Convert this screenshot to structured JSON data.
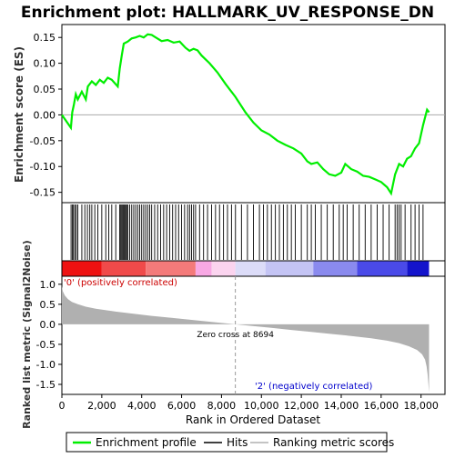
{
  "chart_data": {
    "type": "line",
    "title": "Enrichment plot: HALLMARK_UV_RESPONSE_DN",
    "top_panel": {
      "ylabel": "Enrichment score (ES)",
      "ylim": [
        -0.17,
        0.175
      ],
      "yticks": [
        0.15,
        0.1,
        0.05,
        0.0,
        -0.05,
        -0.1,
        -0.15
      ],
      "ytick_labels": [
        "0.15",
        "0.10",
        "0.05",
        "0.00",
        "-0.05",
        "-0.10",
        "-0.15"
      ],
      "series": [
        {
          "name": "Enrichment profile",
          "color": "#00ee00",
          "x": [
            0,
            450,
            520,
            600,
            700,
            800,
            1000,
            1200,
            1300,
            1500,
            1700,
            1900,
            2100,
            2300,
            2500,
            2800,
            2900,
            3000,
            3100,
            3200,
            3300,
            3500,
            3700,
            3900,
            4100,
            4300,
            4500,
            4700,
            5000,
            5300,
            5600,
            5900,
            6200,
            6400,
            6600,
            6800,
            7000,
            7400,
            7800,
            8200,
            8694,
            9200,
            9600,
            10000,
            10400,
            10800,
            11200,
            11600,
            12000,
            12300,
            12500,
            12800,
            13100,
            13400,
            13700,
            14000,
            14200,
            14500,
            14800,
            15100,
            15400,
            15700,
            16000,
            16300,
            16500,
            16700,
            16900,
            17100,
            17300,
            17500,
            17700,
            17900,
            18100,
            18300,
            18400
          ],
          "y": [
            0.0,
            -0.025,
            0.005,
            0.02,
            0.04,
            0.03,
            0.045,
            0.03,
            0.055,
            0.065,
            0.058,
            0.068,
            0.062,
            0.072,
            0.068,
            0.055,
            0.09,
            0.115,
            0.138,
            0.14,
            0.142,
            0.148,
            0.15,
            0.153,
            0.15,
            0.156,
            0.155,
            0.15,
            0.143,
            0.145,
            0.14,
            0.142,
            0.13,
            0.124,
            0.128,
            0.125,
            0.115,
            0.1,
            0.082,
            0.06,
            0.035,
            0.005,
            -0.015,
            -0.03,
            -0.038,
            -0.05,
            -0.058,
            -0.065,
            -0.075,
            -0.09,
            -0.095,
            -0.092,
            -0.105,
            -0.115,
            -0.118,
            -0.112,
            -0.095,
            -0.105,
            -0.11,
            -0.118,
            -0.12,
            -0.125,
            -0.13,
            -0.14,
            -0.152,
            -0.115,
            -0.095,
            -0.1,
            -0.085,
            -0.08,
            -0.065,
            -0.055,
            -0.02,
            0.01,
            0.005
          ]
        }
      ]
    },
    "hits": {
      "name": "Hits",
      "x": [
        460,
        530,
        580,
        650,
        720,
        800,
        1000,
        1150,
        1280,
        1400,
        1500,
        1650,
        1800,
        2000,
        2200,
        2350,
        2500,
        2700,
        2900,
        2950,
        3000,
        3050,
        3100,
        3150,
        3200,
        3250,
        3300,
        3400,
        3500,
        3600,
        3700,
        3800,
        3900,
        4000,
        4100,
        4200,
        4300,
        4400,
        4500,
        4650,
        4800,
        4950,
        5100,
        5250,
        5400,
        5550,
        5700,
        5850,
        6000,
        6150,
        6300,
        6400,
        6500,
        6600,
        6700,
        6900,
        7100,
        7300,
        7500,
        7700,
        7900,
        8100,
        8300,
        8500,
        8700,
        9000,
        9300,
        9600,
        9900,
        10100,
        10300,
        10500,
        10700,
        10900,
        11100,
        11300,
        11500,
        11700,
        12000,
        12300,
        12500,
        12700,
        13000,
        13300,
        13600,
        13900,
        14100,
        14300,
        14600,
        14900,
        15200,
        15500,
        15800,
        16100,
        16400,
        16700,
        16800,
        16900,
        17000,
        17200,
        17500,
        17700,
        17900,
        18100
      ]
    },
    "ranking_bar": {
      "segments": [
        {
          "from": 0,
          "to": 2000,
          "color": "#ee1111"
        },
        {
          "from": 2000,
          "to": 4200,
          "color": "#f04a4a"
        },
        {
          "from": 4200,
          "to": 6700,
          "color": "#f47a7a"
        },
        {
          "from": 6700,
          "to": 7500,
          "color": "#f8a8e4"
        },
        {
          "from": 7500,
          "to": 8694,
          "color": "#fbd4ef"
        },
        {
          "from": 8694,
          "to": 10200,
          "color": "#dcdcf8"
        },
        {
          "from": 10200,
          "to": 12600,
          "color": "#c4c4f4"
        },
        {
          "from": 12600,
          "to": 14800,
          "color": "#8a8aee"
        },
        {
          "from": 14800,
          "to": 17300,
          "color": "#4a4ae8"
        },
        {
          "from": 17300,
          "to": 18400,
          "color": "#1414cc"
        }
      ]
    },
    "bottom_panel": {
      "ylabel": "Ranked list metric (Signal2Noise)",
      "xlabel": "Rank in Ordered Dataset",
      "ylim": [
        -1.75,
        1.2
      ],
      "yticks": [
        1.0,
        0.5,
        0.0,
        -0.5,
        -1.0,
        -1.5
      ],
      "ytick_labels": [
        "1.0",
        "0.5",
        "0.0",
        "-0.5",
        "-1.0",
        "-1.5"
      ],
      "series": [
        {
          "name": "Ranking metric scores",
          "color": "#b0b0b0",
          "x": [
            0,
            50,
            150,
            300,
            500,
            800,
            1200,
            1700,
            2500,
            3500,
            4500,
            5500,
            6500,
            7500,
            8694,
            9500,
            10500,
            11500,
            12500,
            13500,
            14500,
            15500,
            16300,
            16900,
            17400,
            17800,
            18050,
            18200,
            18280,
            18330,
            18370,
            18400
          ],
          "y": [
            0.95,
            0.82,
            0.72,
            0.63,
            0.56,
            0.5,
            0.44,
            0.39,
            0.33,
            0.27,
            0.21,
            0.16,
            0.11,
            0.06,
            0.0,
            -0.04,
            -0.09,
            -0.14,
            -0.19,
            -0.24,
            -0.29,
            -0.35,
            -0.41,
            -0.47,
            -0.55,
            -0.64,
            -0.75,
            -0.88,
            -1.05,
            -1.25,
            -1.5,
            -1.7
          ]
        }
      ],
      "zero_cross_label": "Zero cross at 8694",
      "zero_cross_x": 8694,
      "pos_label": "'0' (positively correlated)",
      "neg_label": "'2' (negatively correlated)"
    },
    "x_axis": {
      "xlim": [
        0,
        19200
      ],
      "xticks": [
        0,
        2000,
        4000,
        6000,
        8000,
        10000,
        12000,
        14000,
        16000,
        18000
      ],
      "xtick_labels": [
        "0",
        "2,000",
        "4,000",
        "6,000",
        "8,000",
        "10,000",
        "12,000",
        "14,000",
        "16,000",
        "18,000"
      ]
    },
    "legend": {
      "placement": "bottom",
      "entries": [
        {
          "label": "Enrichment profile",
          "color": "#00ee00"
        },
        {
          "label": "Hits",
          "color": "#000000"
        },
        {
          "label": "Ranking metric scores",
          "color": "#b0b0b0"
        }
      ]
    }
  }
}
